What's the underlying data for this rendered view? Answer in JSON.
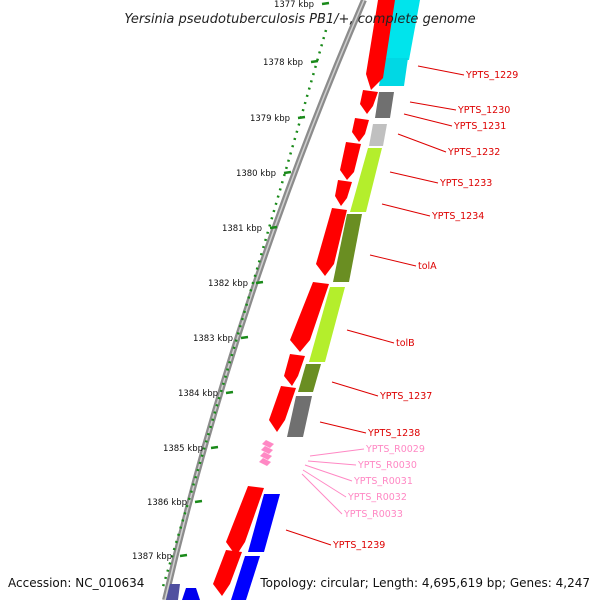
{
  "title": "Yersinia pseudotuberculosis PB1/+, complete genome",
  "footer": {
    "accession": "Accession: NC_010634",
    "topology": "Topology: circular; Length: 4,695,619 bp; Genes: 4,247"
  },
  "colors": {
    "backbone": "#8c8c8c",
    "ticks": "#1a8a1a",
    "forward_gene": "#ff0000",
    "label_red": "#dd0000",
    "label_pink": "#ff88c4",
    "trna": "#ff88c4"
  },
  "axis": {
    "unit": "kbp",
    "ticks": [
      {
        "label": "1377 kbp"
      },
      {
        "label": "1378 kbp"
      },
      {
        "label": "1379 kbp"
      },
      {
        "label": "1380 kbp"
      },
      {
        "label": "1381 kbp"
      },
      {
        "label": "1382 kbp"
      },
      {
        "label": "1383 kbp"
      },
      {
        "label": "1384 kbp"
      },
      {
        "label": "1385 kbp"
      },
      {
        "label": "1386 kbp"
      },
      {
        "label": "1387 kbp"
      }
    ]
  },
  "genes": [
    {
      "name": "YPTS_1229",
      "type": "cds",
      "color": "red"
    },
    {
      "name": "YPTS_1230",
      "type": "cds",
      "color": "red"
    },
    {
      "name": "YPTS_1231",
      "type": "cds",
      "color": "red"
    },
    {
      "name": "YPTS_1232",
      "type": "cds",
      "color": "red"
    },
    {
      "name": "YPTS_1233",
      "type": "cds",
      "color": "red"
    },
    {
      "name": "YPTS_1234",
      "type": "cds",
      "color": "red"
    },
    {
      "name": "tolA",
      "type": "cds",
      "color": "red"
    },
    {
      "name": "tolB",
      "type": "cds",
      "color": "red"
    },
    {
      "name": "YPTS_1237",
      "type": "cds",
      "color": "red"
    },
    {
      "name": "YPTS_1238",
      "type": "cds",
      "color": "red"
    },
    {
      "name": "YPTS_R0029",
      "type": "trna",
      "color": "pink"
    },
    {
      "name": "YPTS_R0030",
      "type": "trna",
      "color": "pink"
    },
    {
      "name": "YPTS_R0031",
      "type": "trna",
      "color": "pink"
    },
    {
      "name": "YPTS_R0032",
      "type": "trna",
      "color": "pink"
    },
    {
      "name": "YPTS_R0033",
      "type": "trna",
      "color": "pink"
    },
    {
      "name": "YPTS_1239",
      "type": "cds",
      "color": "red"
    }
  ]
}
